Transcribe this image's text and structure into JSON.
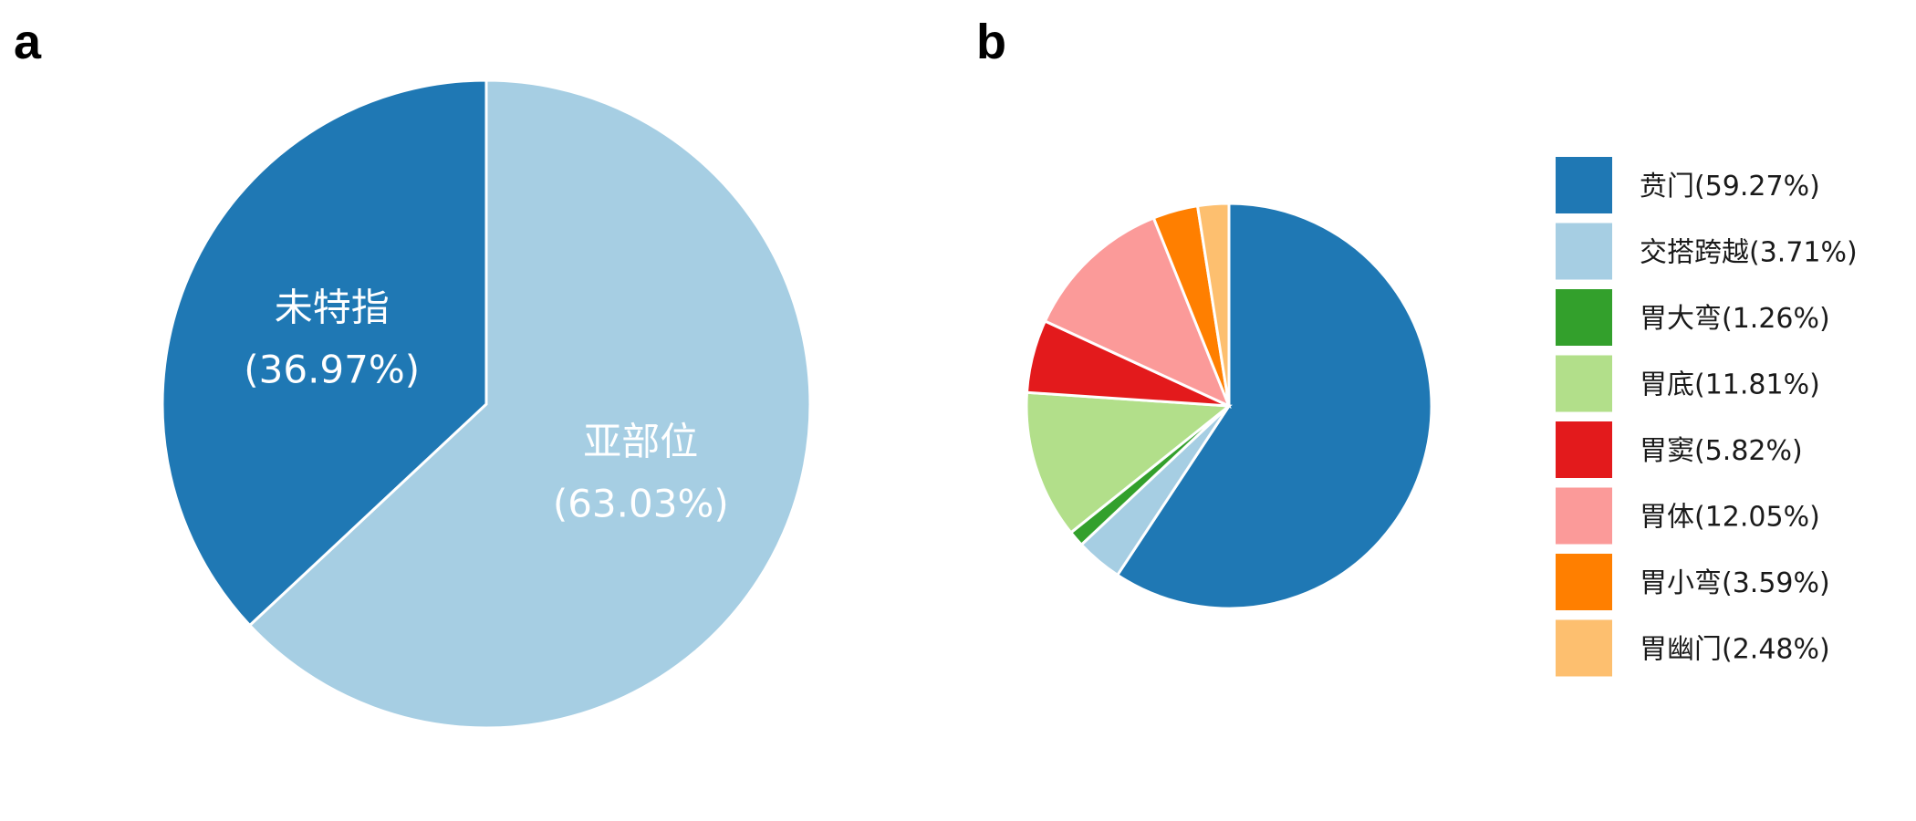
{
  "chart_data": [
    {
      "panel": "a",
      "type": "pie",
      "colors": {
        "slice_border": "#ffffff",
        "label_text": "#ffffff"
      },
      "slices": [
        {
          "name": "亚部位",
          "value": 63.03,
          "pct_label": "(63.03%)",
          "color": "#A6CEE3"
        },
        {
          "name": "未特指",
          "value": 36.97,
          "pct_label": "(36.97%)",
          "color": "#1F78B4"
        }
      ]
    },
    {
      "panel": "b",
      "type": "pie",
      "legend_position": "right",
      "colors": {
        "slice_border": "#ffffff"
      },
      "slices": [
        {
          "label": "贲门(59.27%)",
          "value": 59.27,
          "color": "#1F78B4"
        },
        {
          "label": "交搭跨越(3.71%)",
          "value": 3.71,
          "color": "#A6CEE3"
        },
        {
          "label": "胃大弯(1.26%)",
          "value": 1.26,
          "color": "#33A02C"
        },
        {
          "label": "胃底(11.81%)",
          "value": 11.81,
          "color": "#B2DF8A"
        },
        {
          "label": "胃窦(5.82%)",
          "value": 5.82,
          "color": "#E31A1C"
        },
        {
          "label": "胃体(12.05%)",
          "value": 12.05,
          "color": "#FB9A99"
        },
        {
          "label": "胃小弯(3.59%)",
          "value": 3.59,
          "color": "#FF7F00"
        },
        {
          "label": "胃幽门(2.48%)",
          "value": 2.48,
          "color": "#FDBF6F"
        }
      ]
    }
  ]
}
